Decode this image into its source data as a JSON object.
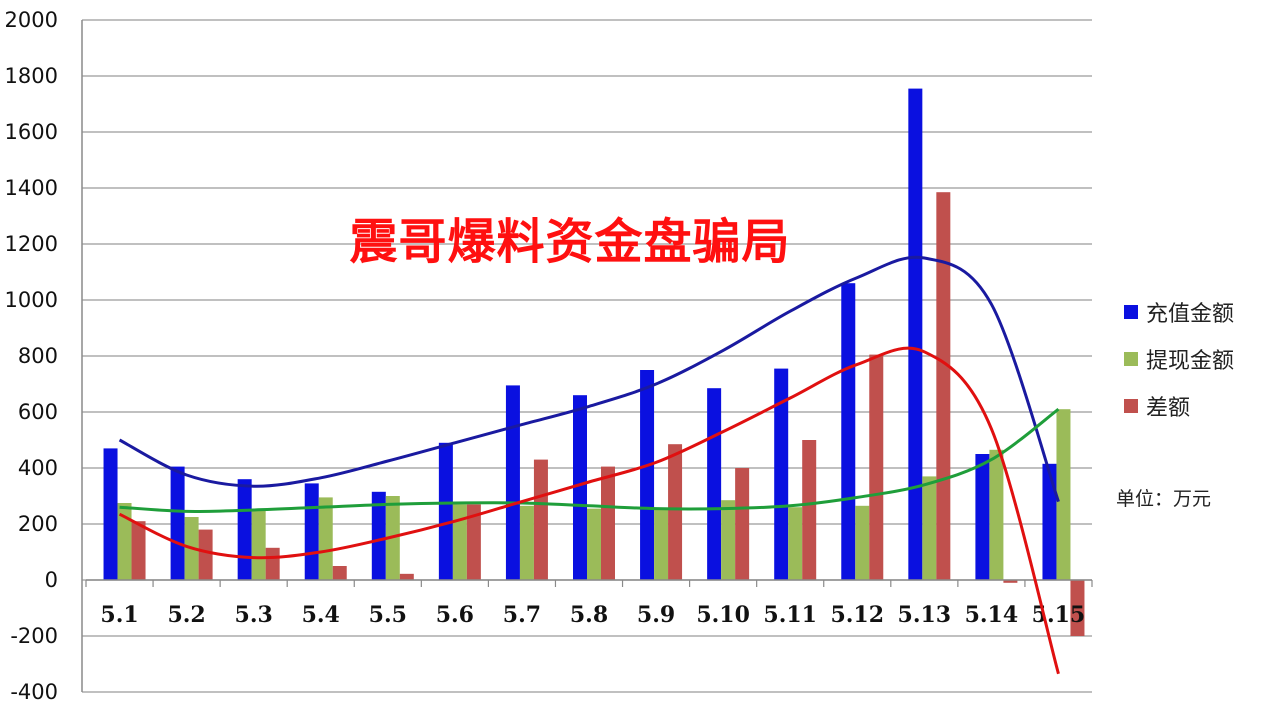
{
  "chart_data": {
    "type": "bar",
    "title": "",
    "xlabel": "",
    "ylabel": "",
    "ylim": [
      -400,
      2000
    ],
    "yticks": [
      "-400",
      "-200",
      "0",
      "200",
      "400",
      "600",
      "800",
      "1000",
      "1200",
      "1400",
      "1600",
      "1800",
      "2000"
    ],
    "grid": true,
    "legend_position": "right",
    "categories": [
      "5.1",
      "5.2",
      "5.3",
      "5.4",
      "5.5",
      "5.6",
      "5.7",
      "5.8",
      "5.9",
      "5.10",
      "5.11",
      "5.12",
      "5.13",
      "5.14",
      "5.15"
    ],
    "series": [
      {
        "name": "充值金额",
        "color": "#0a10e0",
        "values": [
          470,
          405,
          360,
          345,
          315,
          490,
          695,
          660,
          750,
          685,
          755,
          1060,
          1755,
          450,
          415
        ]
      },
      {
        "name": "提现金额",
        "color": "#9bbb59",
        "values": [
          275,
          225,
          250,
          295,
          300,
          270,
          265,
          255,
          255,
          285,
          260,
          265,
          370,
          465,
          610
        ]
      },
      {
        "name": "差额",
        "color": "#c0504d",
        "values": [
          210,
          180,
          115,
          50,
          22,
          270,
          430,
          405,
          485,
          400,
          500,
          805,
          1385,
          -10,
          -200
        ]
      }
    ],
    "trendlines": [
      {
        "series": "充值金额",
        "color": "#1a1aa0",
        "values": [
          500,
          375,
          335,
          365,
          425,
          490,
          555,
          620,
          700,
          820,
          960,
          1080,
          1150,
          985,
          280
        ]
      },
      {
        "series": "提现金额",
        "color": "#1f9e3a",
        "values": [
          260,
          245,
          250,
          260,
          270,
          275,
          275,
          265,
          255,
          255,
          265,
          295,
          340,
          430,
          610
        ]
      },
      {
        "series": "差额",
        "color": "#e01010",
        "values": [
          235,
          120,
          80,
          100,
          150,
          210,
          280,
          350,
          420,
          530,
          650,
          770,
          815,
          540,
          -335
        ]
      }
    ]
  },
  "overlay": {
    "text": "震哥爆料资金盘骗局"
  },
  "unit_label": "单位：万元"
}
